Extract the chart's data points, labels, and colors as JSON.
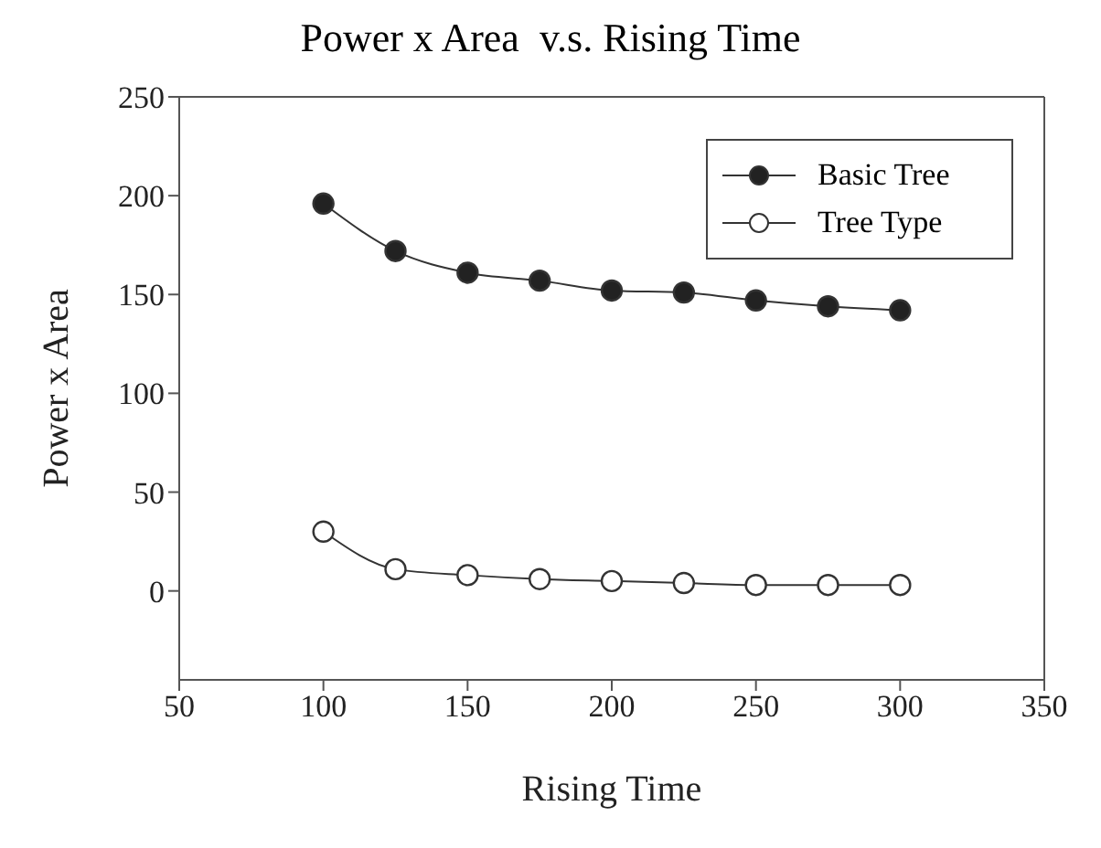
{
  "chart_data": {
    "type": "line",
    "title": "Power x Area  v.s. Rising Time",
    "xlabel": "Rising Time",
    "ylabel": "Power x Area",
    "x": [
      100,
      125,
      150,
      175,
      200,
      225,
      250,
      275,
      300
    ],
    "series": [
      {
        "name": "Basic Tree",
        "color": "#222222",
        "values": [
          196,
          172,
          161,
          157,
          152,
          151,
          147,
          144,
          142
        ]
      },
      {
        "name": "Tree Type",
        "color": "#ffffff",
        "values": [
          30,
          11,
          8,
          6,
          5,
          4,
          3,
          3,
          3
        ]
      }
    ],
    "xlim": [
      50,
      350
    ],
    "xticks": [
      50,
      100,
      150,
      200,
      250,
      300,
      350
    ],
    "ylim": [
      -45,
      250
    ],
    "yticks": [
      0,
      50,
      100,
      150,
      200,
      250
    ],
    "grid": false,
    "legend": "top right",
    "marker": "circle",
    "line_style": "solid"
  }
}
